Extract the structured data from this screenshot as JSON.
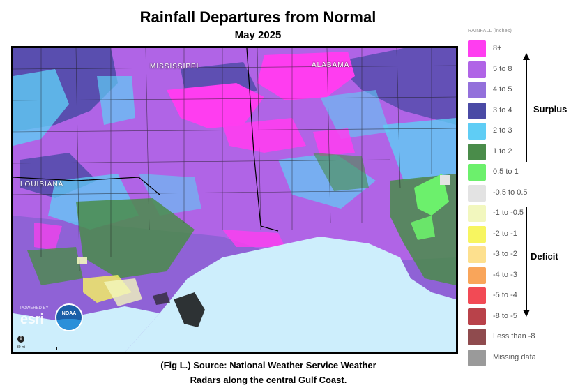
{
  "title": "Rainfall Departures from Normal",
  "subtitle": "May 2025",
  "map": {
    "state_labels": {
      "mississippi": "MISSISSIPPI",
      "alabama": "ALABAMA",
      "louisiana": "LOUISIANA"
    },
    "esri_text": "esri",
    "esri_powered": "POWERED BY",
    "noaa_text": "NOAA",
    "info_symbol": "i",
    "scale_text": "30 mi",
    "colors": {
      "8_plus": "#ff3df0",
      "5_to_8": "#b064e6",
      "4_to_5": "#8f62d6",
      "3_to_4": "#4a4aa5",
      "2_to_3": "#5fcdf5",
      "1_to_2": "#4a8c4a",
      "0_5_to_1": "#6cf06c",
      "neutral": "#e3e3e3",
      "water": "#cdeefc"
    }
  },
  "legend": {
    "title": "RAINFALL (inches)",
    "items": [
      {
        "label": "8+",
        "color": "#ff3df0"
      },
      {
        "label": "5 to 8",
        "color": "#b064e6"
      },
      {
        "label": "4 to 5",
        "color": "#9370db"
      },
      {
        "label": "3 to 4",
        "color": "#4a4aa5"
      },
      {
        "label": "2 to 3",
        "color": "#5fcdf5"
      },
      {
        "label": "1 to 2",
        "color": "#4a8c4a"
      },
      {
        "label": "0.5 to 1",
        "color": "#6cf06c"
      },
      {
        "label": "-0.5 to 0.5",
        "color": "#e3e3e3"
      },
      {
        "label": "-1 to -0.5",
        "color": "#f2f7be"
      },
      {
        "label": "-2 to -1",
        "color": "#f7f560"
      },
      {
        "label": "-3 to -2",
        "color": "#fde08e"
      },
      {
        "label": "-4 to -3",
        "color": "#f9a55a"
      },
      {
        "label": "-5 to -4",
        "color": "#f24a55"
      },
      {
        "label": "-8 to -5",
        "color": "#b9424a"
      },
      {
        "label": "Less than -8",
        "color": "#8f4b4e"
      },
      {
        "label": "Missing data",
        "color": "#9a9a9a"
      }
    ]
  },
  "surplus_label": "Surplus",
  "deficit_label": "Deficit",
  "caption": {
    "line1": "(Fig L.) Source: National Weather Service Weather",
    "line2": "Radars along the central Gulf Coast."
  }
}
